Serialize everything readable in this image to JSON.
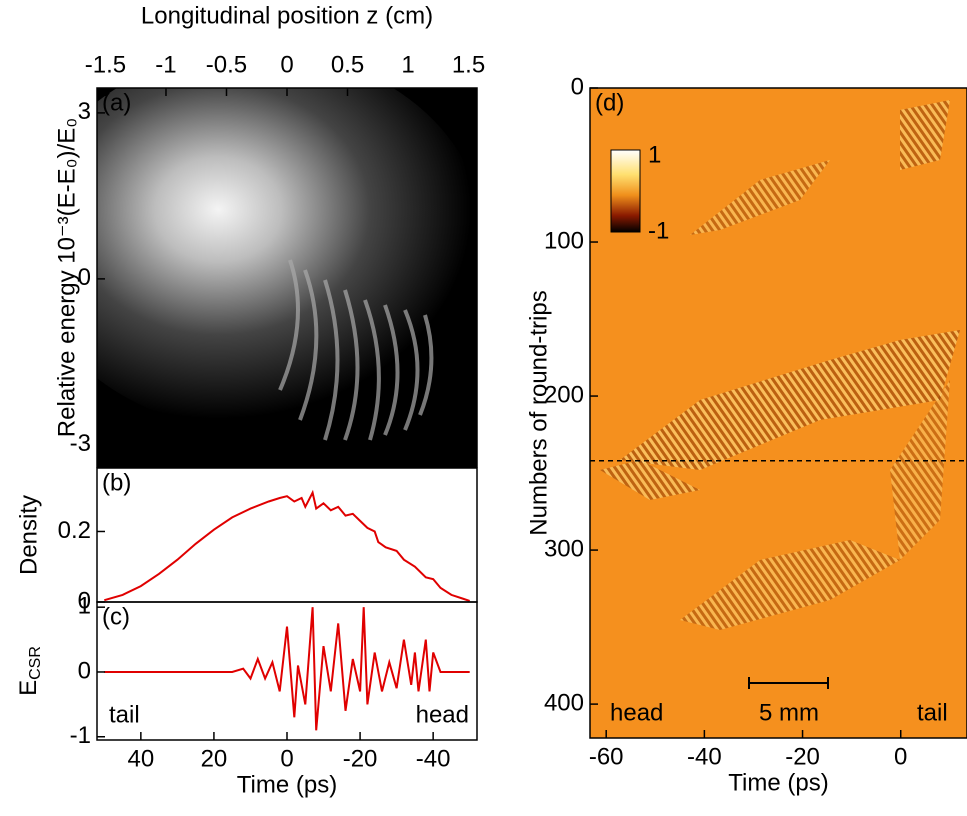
{
  "chart_data": [
    {
      "type": "heatmap",
      "panel_label": "(a)",
      "x_label": "Longitudinal position z (cm)",
      "xlim": [
        -1.57,
        1.57
      ],
      "xticks": [
        -1.5,
        -1,
        -0.5,
        0,
        0.5,
        1,
        1.5
      ],
      "y_label": "Relative energy 10⁻³(E-E₀)/E₀",
      "ylim": [
        -3.4,
        3.45
      ],
      "yticks": [
        -3,
        0,
        3
      ]
    },
    {
      "type": "line",
      "panel_label": "(b)",
      "y_label": "Density",
      "color": "#e00000",
      "xlim": [
        52,
        -52
      ],
      "ylim": [
        0,
        0.38
      ],
      "yticks": [
        0,
        0.2
      ],
      "x": [
        50,
        45,
        40,
        35,
        30,
        25,
        20,
        15,
        10,
        5,
        2,
        0,
        -2,
        -4,
        -5,
        -7,
        -8,
        -10,
        -12,
        -14,
        -16,
        -18,
        -20,
        -22,
        -24,
        -25,
        -27,
        -30,
        -32,
        -35,
        -38,
        -40,
        -42,
        -45,
        -48,
        -50
      ],
      "values": [
        0.005,
        0.02,
        0.045,
        0.08,
        0.12,
        0.165,
        0.205,
        0.24,
        0.265,
        0.285,
        0.295,
        0.3,
        0.285,
        0.295,
        0.27,
        0.31,
        0.265,
        0.28,
        0.26,
        0.27,
        0.245,
        0.25,
        0.23,
        0.21,
        0.2,
        0.17,
        0.155,
        0.145,
        0.12,
        0.1,
        0.07,
        0.065,
        0.04,
        0.02,
        0.01,
        0.003
      ]
    },
    {
      "type": "line",
      "panel_label": "(c)",
      "y_label": {
        "main": "E",
        "sub": "CSR"
      },
      "x_label": "Time (ps)",
      "color": "#e00000",
      "xlim": [
        52,
        -52
      ],
      "xticks": [
        40,
        20,
        0,
        -20,
        -40
      ],
      "ylim": [
        -1.05,
        1.08
      ],
      "yticks": [
        -1,
        0,
        1
      ],
      "annotations": [
        "tail",
        "head"
      ],
      "x": [
        50,
        40,
        30,
        20,
        15,
        12,
        10,
        8,
        6,
        4,
        2,
        0,
        -2,
        -3,
        -5,
        -7,
        -8,
        -10,
        -12,
        -14,
        -16,
        -18,
        -20,
        -21,
        -22,
        -24,
        -26,
        -28,
        -30,
        -32,
        -34,
        -35,
        -36,
        -38,
        -39,
        -40,
        -42,
        -50
      ],
      "values": [
        0,
        0,
        0,
        0,
        0,
        0.05,
        -0.1,
        0.2,
        -0.1,
        0.15,
        -0.3,
        0.7,
        -0.7,
        0.1,
        -0.5,
        1.0,
        -0.9,
        0.4,
        -0.3,
        0.75,
        -0.6,
        0.2,
        -0.3,
        1.0,
        -0.5,
        0.3,
        -0.3,
        0.15,
        -0.25,
        0.5,
        -0.2,
        0.3,
        -0.3,
        0.5,
        -0.3,
        0.3,
        0,
        0
      ]
    },
    {
      "type": "heatmap",
      "panel_label": "(d)",
      "x_label": "Time (ps)",
      "y_label": "Numbers of round-trips",
      "xlim": [
        -63.3,
        13.5
      ],
      "xticks": [
        -60,
        -40,
        -20,
        0
      ],
      "ylim": [
        0,
        422
      ],
      "y_inverted": true,
      "yticks": [
        0,
        100,
        200,
        300,
        400
      ],
      "colorbar_ticks": [
        -1,
        1
      ],
      "dashed_line_y": 242,
      "annotations": [
        "head",
        "5 mm",
        "tail"
      ]
    }
  ]
}
